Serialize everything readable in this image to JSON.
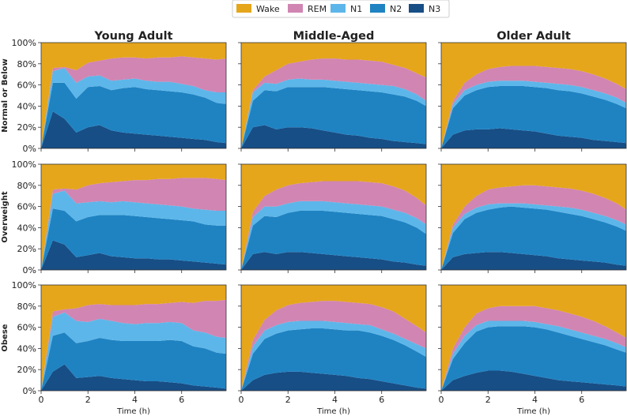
{
  "chart_data": {
    "type": "area",
    "stacked": true,
    "layout": "grid-3x3",
    "legend_position": "top-center",
    "xlabel": "Time (h)",
    "ylabel_format": "percent",
    "xlim": [
      0,
      7.9
    ],
    "ylim": [
      0,
      100
    ],
    "x_ticks": [
      0,
      2,
      4,
      6
    ],
    "y_ticks": [
      0,
      20,
      40,
      60,
      80,
      100
    ],
    "y_tick_labels": [
      "0%",
      "20%",
      "40%",
      "60%",
      "80%",
      "100%"
    ],
    "columns": [
      "Young Adult",
      "Middle-Aged",
      "Older Adult"
    ],
    "rows": [
      "Normal or Below",
      "Overweight",
      "Obese"
    ],
    "stage_order_bottom_to_top": [
      "N3",
      "N2",
      "N1",
      "REM",
      "Wake"
    ],
    "legend": [
      {
        "name": "Wake",
        "color": "#E5A61C"
      },
      {
        "name": "REM",
        "color": "#D185B3"
      },
      {
        "name": "N1",
        "color": "#5DB6E9"
      },
      {
        "name": "N2",
        "color": "#1F83C2"
      },
      {
        "name": "N3",
        "color": "#174E85"
      }
    ],
    "x": [
      0,
      0.5,
      1,
      1.5,
      2,
      2.5,
      3,
      3.5,
      4,
      4.5,
      5,
      5.5,
      6,
      6.5,
      7,
      7.5,
      7.9
    ],
    "panels": [
      {
        "row": "Normal or Below",
        "col": "Young Adult",
        "cum": {
          "N3": [
            0,
            35,
            28,
            15,
            20,
            22,
            17,
            15,
            14,
            13,
            12,
            11,
            10,
            9,
            8,
            6,
            5
          ],
          "N2": [
            0,
            62,
            62,
            47,
            58,
            59,
            55,
            57,
            58,
            56,
            55,
            54,
            53,
            51,
            48,
            43,
            42
          ],
          "N1": [
            0,
            73,
            76,
            62,
            68,
            69,
            64,
            65,
            66,
            64,
            63,
            63,
            61,
            59,
            55,
            53,
            53
          ],
          "REM": [
            0,
            76,
            77,
            74,
            81,
            83,
            85,
            86,
            86,
            85,
            86,
            86,
            87,
            86,
            85,
            84,
            85
          ]
        }
      },
      {
        "row": "Normal or Below",
        "col": "Middle-Aged",
        "cum": {
          "N3": [
            0,
            20,
            22,
            18,
            20,
            20,
            19,
            17,
            15,
            13,
            12,
            10,
            9,
            7,
            6,
            5,
            4
          ],
          "N2": [
            0,
            45,
            55,
            54,
            58,
            58,
            58,
            58,
            57,
            56,
            55,
            54,
            53,
            51,
            49,
            45,
            40
          ],
          "N1": [
            0,
            53,
            62,
            61,
            65,
            66,
            65,
            65,
            64,
            63,
            62,
            61,
            60,
            59,
            56,
            51,
            45
          ],
          "REM": [
            0,
            55,
            68,
            74,
            80,
            82,
            84,
            85,
            85,
            84,
            84,
            83,
            82,
            79,
            76,
            71,
            67
          ]
        }
      },
      {
        "row": "Normal or Below",
        "col": "Older Adult",
        "cum": {
          "N3": [
            0,
            13,
            17,
            18,
            18,
            19,
            18,
            17,
            16,
            14,
            12,
            11,
            10,
            8,
            7,
            6,
            5
          ],
          "N2": [
            0,
            38,
            50,
            55,
            58,
            59,
            59,
            59,
            58,
            57,
            55,
            54,
            52,
            49,
            46,
            42,
            38
          ],
          "N1": [
            0,
            42,
            55,
            60,
            63,
            64,
            64,
            64,
            63,
            62,
            61,
            60,
            58,
            55,
            52,
            48,
            43
          ],
          "REM": [
            0,
            45,
            62,
            70,
            75,
            77,
            78,
            78,
            78,
            77,
            76,
            75,
            73,
            70,
            66,
            61,
            56
          ]
        }
      },
      {
        "row": "Overweight",
        "col": "Young Adult",
        "cum": {
          "N3": [
            0,
            28,
            24,
            12,
            14,
            16,
            13,
            12,
            11,
            11,
            10,
            10,
            9,
            8,
            7,
            6,
            5
          ],
          "N2": [
            0,
            58,
            56,
            46,
            50,
            52,
            52,
            52,
            51,
            50,
            49,
            48,
            47,
            46,
            43,
            42,
            42
          ],
          "N1": [
            0,
            72,
            75,
            63,
            64,
            65,
            64,
            65,
            64,
            63,
            62,
            61,
            60,
            58,
            57,
            56,
            56
          ],
          "REM": [
            0,
            76,
            77,
            76,
            80,
            82,
            83,
            84,
            85,
            85,
            86,
            86,
            87,
            87,
            87,
            86,
            85
          ]
        }
      },
      {
        "row": "Overweight",
        "col": "Middle-Aged",
        "cum": {
          "N3": [
            0,
            15,
            17,
            15,
            17,
            17,
            16,
            15,
            14,
            13,
            12,
            11,
            10,
            8,
            7,
            5,
            4
          ],
          "N2": [
            0,
            42,
            51,
            50,
            54,
            56,
            56,
            56,
            55,
            54,
            53,
            52,
            51,
            48,
            45,
            40,
            34
          ],
          "N1": [
            0,
            50,
            60,
            60,
            63,
            65,
            65,
            65,
            64,
            63,
            62,
            61,
            60,
            57,
            54,
            49,
            43
          ],
          "REM": [
            0,
            55,
            70,
            76,
            80,
            82,
            83,
            84,
            84,
            84,
            84,
            83,
            82,
            79,
            75,
            68,
            61
          ]
        }
      },
      {
        "row": "Overweight",
        "col": "Older Adult",
        "cum": {
          "N3": [
            0,
            12,
            15,
            16,
            17,
            17,
            16,
            15,
            14,
            13,
            11,
            10,
            9,
            8,
            7,
            5,
            4
          ],
          "N2": [
            0,
            35,
            48,
            54,
            57,
            59,
            60,
            59,
            58,
            57,
            55,
            53,
            51,
            48,
            45,
            41,
            37
          ],
          "N1": [
            0,
            40,
            53,
            59,
            62,
            63,
            63,
            63,
            62,
            61,
            60,
            59,
            57,
            54,
            51,
            47,
            43
          ],
          "REM": [
            0,
            43,
            60,
            70,
            76,
            78,
            79,
            80,
            80,
            79,
            78,
            77,
            75,
            72,
            68,
            63,
            57
          ]
        }
      },
      {
        "row": "Obese",
        "col": "Young Adult",
        "cum": {
          "N3": [
            0,
            18,
            25,
            12,
            13,
            14,
            12,
            11,
            10,
            9,
            9,
            8,
            7,
            5,
            4,
            3,
            2
          ],
          "N2": [
            0,
            52,
            55,
            45,
            47,
            50,
            48,
            47,
            47,
            47,
            47,
            48,
            47,
            42,
            40,
            36,
            35
          ],
          "N1": [
            0,
            70,
            74,
            66,
            65,
            68,
            66,
            64,
            63,
            64,
            64,
            65,
            64,
            57,
            55,
            51,
            50
          ],
          "REM": [
            0,
            75,
            77,
            78,
            81,
            82,
            81,
            81,
            81,
            82,
            82,
            83,
            84,
            83,
            85,
            85,
            86
          ]
        }
      },
      {
        "row": "Obese",
        "col": "Middle-Aged",
        "cum": {
          "N3": [
            0,
            10,
            15,
            17,
            18,
            18,
            17,
            16,
            15,
            14,
            12,
            11,
            9,
            7,
            5,
            3,
            2
          ],
          "N2": [
            0,
            35,
            49,
            54,
            57,
            58,
            59,
            59,
            58,
            57,
            57,
            55,
            52,
            48,
            43,
            37,
            32
          ],
          "N1": [
            0,
            42,
            57,
            62,
            65,
            66,
            66,
            66,
            65,
            64,
            63,
            62,
            58,
            54,
            49,
            44,
            40
          ],
          "REM": [
            0,
            48,
            67,
            76,
            81,
            83,
            84,
            85,
            85,
            84,
            83,
            82,
            79,
            75,
            68,
            61,
            55
          ]
        }
      },
      {
        "row": "Obese",
        "col": "Older Adult",
        "cum": {
          "N3": [
            0,
            10,
            14,
            17,
            19,
            19,
            18,
            16,
            14,
            12,
            10,
            9,
            8,
            7,
            6,
            5,
            4
          ],
          "N2": [
            0,
            30,
            45,
            56,
            60,
            61,
            61,
            61,
            60,
            58,
            55,
            52,
            49,
            46,
            43,
            39,
            36
          ],
          "N1": [
            0,
            35,
            52,
            62,
            66,
            66,
            66,
            66,
            65,
            63,
            61,
            58,
            55,
            52,
            49,
            45,
            41
          ],
          "REM": [
            0,
            40,
            60,
            73,
            78,
            80,
            80,
            80,
            80,
            78,
            76,
            73,
            70,
            66,
            61,
            55,
            50
          ]
        }
      }
    ]
  }
}
